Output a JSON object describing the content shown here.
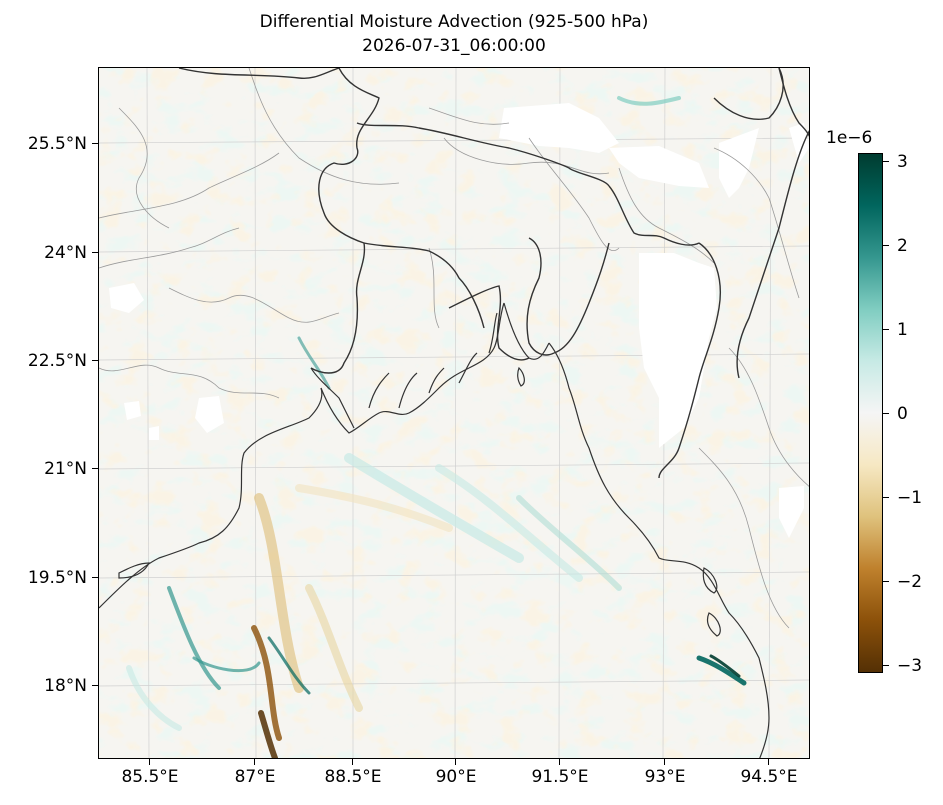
{
  "title": {
    "line1": "Differential Moisture Advection (925-500 hPa)",
    "line2": "2026-07-31_06:00:00"
  },
  "map": {
    "lon_range": [
      84.5,
      95.1
    ],
    "lat_range": [
      16.8,
      26.5
    ],
    "lat_labels": [
      "25.5°N",
      "24°N",
      "22.5°N",
      "21°N",
      "19.5°N",
      "18°N"
    ],
    "lon_labels": [
      "85.5°E",
      "87°E",
      "88.5°E",
      "90°E",
      "91.5°E",
      "93°E",
      "94.5°E"
    ],
    "gridlines": true,
    "features": [
      "coastline",
      "country-borders",
      "state-borders",
      "missing-data-patches"
    ]
  },
  "colorbar": {
    "exponent_label": "1e−6",
    "tick_labels": [
      "3",
      "2",
      "1",
      "0",
      "−1",
      "−2",
      "−3"
    ],
    "range": [
      -3.1,
      3.1
    ],
    "colormap": "BrBG",
    "colors": [
      "#003c30",
      "#01665e",
      "#35978f",
      "#80cdc1",
      "#c7eae5",
      "#f5f5f5",
      "#f6e8c3",
      "#dfc27d",
      "#bf812d",
      "#8c510a",
      "#543005"
    ]
  }
}
